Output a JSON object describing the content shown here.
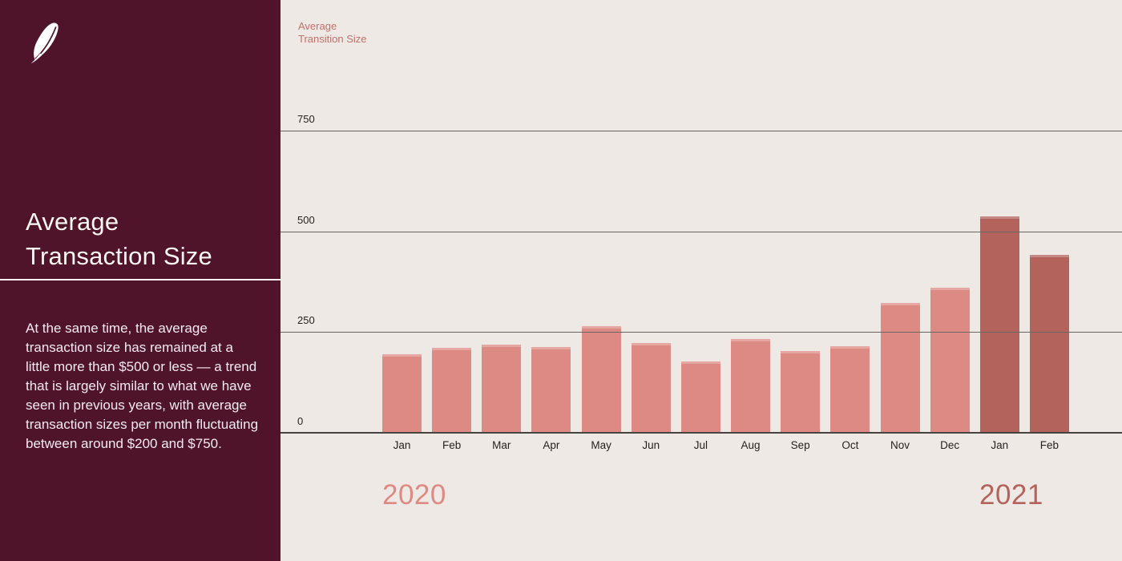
{
  "icons": {
    "logo": "robinhood-feather-icon"
  },
  "sidebar": {
    "title_line1": "Average",
    "title_line2": "Transaction Size",
    "body": "At the same time, the average transaction size has remained at a little more than $500 or less — a trend that is largely similar to what we have seen in previous years, with average transaction sizes per month fluctuating between around $200 and $750."
  },
  "chart": {
    "axis_title_line1": "Average",
    "axis_title_line2": "Transition Size"
  },
  "colors": {
    "sidebar_bg": "#4f1429",
    "canvas_bg": "#efe9e5",
    "bar_2020": "#de8a84",
    "bar_2021": "#b4625c",
    "gridline": "#6b6661",
    "axis_text": "#25231f",
    "chart_label_text": "#c3706b"
  },
  "chart_data": {
    "type": "bar",
    "title": "Average Transition Size",
    "xlabel": "",
    "ylabel": "Average Transition Size",
    "categories": [
      "Jan",
      "Feb",
      "Mar",
      "Apr",
      "May",
      "Jun",
      "Jul",
      "Aug",
      "Sep",
      "Oct",
      "Nov",
      "Dec",
      "Jan",
      "Feb"
    ],
    "values": [
      195,
      210,
      218,
      212,
      264,
      222,
      178,
      232,
      202,
      215,
      322,
      360,
      537,
      442
    ],
    "bar_groups": [
      "2020",
      "2020",
      "2020",
      "2020",
      "2020",
      "2020",
      "2020",
      "2020",
      "2020",
      "2020",
      "2020",
      "2020",
      "2021",
      "2021"
    ],
    "group_colors": {
      "2020": "#de8a84",
      "2021": "#b4625c"
    },
    "yticks": [
      0,
      250,
      500,
      750
    ],
    "ylim": [
      0,
      800
    ],
    "grid": true,
    "legend_position": "none",
    "year_labels": [
      {
        "text": "2020",
        "color": "#dd8a84"
      },
      {
        "text": "2021",
        "color": "#b4625c"
      }
    ]
  }
}
